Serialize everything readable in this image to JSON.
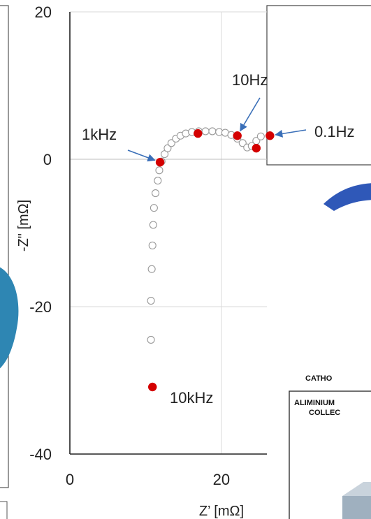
{
  "chart_data": {
    "type": "scatter",
    "title": "",
    "xlabel": "Z’ [mΩ]",
    "ylabel": "-Z\" [mΩ]",
    "xlim": [
      0,
      26
    ],
    "ylim": [
      -40,
      20
    ],
    "x_ticks": [
      "0",
      "20"
    ],
    "y_ticks": [
      "20",
      "0",
      "-20",
      "-40"
    ],
    "grid": true,
    "series": [
      {
        "marker": "open-circle",
        "color": "#999999",
        "x": [
          10.7,
          10.7,
          10.8,
          10.9,
          11.0,
          11.1,
          11.3,
          11.6,
          11.8,
          12.1,
          12.5,
          12.9,
          13.4,
          14.0,
          14.6,
          15.3,
          16.1,
          17.0,
          17.9,
          18.8,
          19.7,
          20.5,
          21.3,
          22.1,
          22.8,
          23.4,
          24.0,
          24.6,
          25.2
        ],
        "y": [
          -24.5,
          -19.2,
          -14.9,
          -11.7,
          -8.9,
          -6.6,
          -4.6,
          -2.9,
          -1.5,
          -0.3,
          0.7,
          1.5,
          2.2,
          2.8,
          3.2,
          3.5,
          3.7,
          3.8,
          3.8,
          3.8,
          3.7,
          3.6,
          3.3,
          2.8,
          2.2,
          1.6,
          1.8,
          2.5,
          3.1
        ]
      },
      {
        "marker": "filled-circle",
        "color": "#d40000",
        "x": [
          10.9,
          11.9,
          16.9,
          22.1,
          24.6,
          26.4
        ],
        "y": [
          -30.9,
          -0.4,
          3.5,
          3.2,
          1.5,
          3.2
        ]
      }
    ],
    "annotations": [
      {
        "text": "1kHz",
        "x": 11.9,
        "y": -0.4
      },
      {
        "text": "10Hz",
        "x": 22.1,
        "y": 3.2
      },
      {
        "text": "0.1Hz",
        "x": 26.4,
        "y": 3.2
      },
      {
        "text": "10kHz",
        "x": 10.9,
        "y": -30.9
      }
    ]
  },
  "side_panel": {
    "title": "CATHO",
    "line1": "ALIMINIUM",
    "line2": "COLLEC"
  },
  "colors": {
    "open_marker": "#999999",
    "filled_marker": "#d40000",
    "arrow": "#3a6fb8",
    "blue_arc": "#2f58b8",
    "teal_shape": "#2e86b3",
    "grid": "#d9d9d9",
    "axis": "#222222"
  }
}
